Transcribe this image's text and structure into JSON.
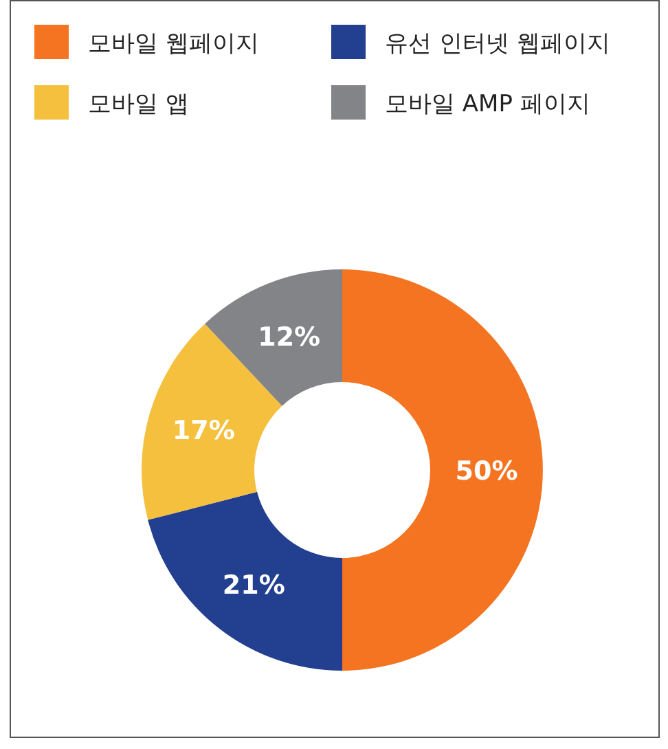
{
  "chart_data": {
    "type": "donut",
    "categories": [
      "모바일 웹페이지",
      "유선 인터넷 웹페이지",
      "모바일 앱",
      "모바일 AMP 페이지"
    ],
    "values": [
      50,
      21,
      17,
      12
    ],
    "value_labels": [
      "50%",
      "21%",
      "17%",
      "12%"
    ],
    "colors": [
      "#f47421",
      "#233f8f",
      "#f5c03e",
      "#838488"
    ],
    "legend": "top"
  }
}
